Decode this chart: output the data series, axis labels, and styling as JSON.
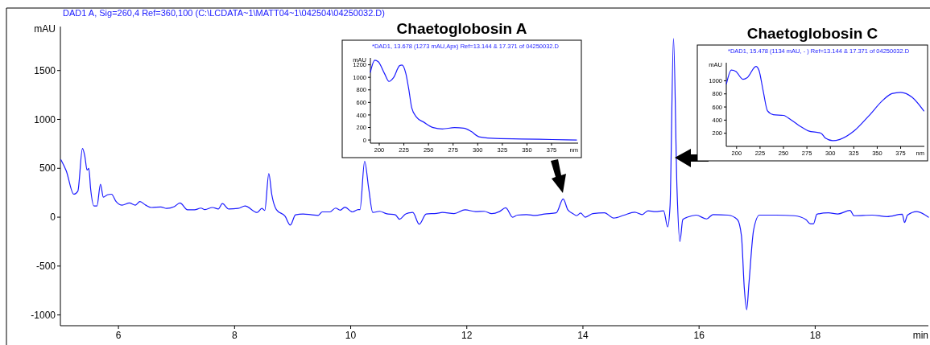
{
  "chart_data": [
    {
      "type": "line",
      "title": "DAD1 A, Sig=260,4 Ref=360,100 (C:\\LCDATA~1\\MATT04~1\\042504\\04250032.D)",
      "xlabel": "min",
      "ylabel": "mAU",
      "xlim": [
        5,
        19.95
      ],
      "ylim": [
        -1110,
        1950
      ],
      "xticks": [
        6,
        8,
        10,
        12,
        14,
        16,
        18
      ],
      "yticks": [
        -1000,
        -500,
        0,
        500,
        1000,
        1500
      ],
      "series": [
        {
          "color": "#1a1aff",
          "x": [
            5.01,
            5.1,
            5.23,
            5.3,
            5.38,
            5.42,
            5.46,
            5.49,
            5.52,
            5.58,
            5.63,
            5.69,
            5.74,
            5.81,
            5.88,
            5.96,
            6.06,
            6.19,
            6.29,
            6.37,
            6.47,
            6.57,
            6.73,
            6.83,
            6.96,
            7.06,
            7.19,
            7.31,
            7.42,
            7.49,
            7.62,
            7.72,
            7.79,
            7.9,
            8.06,
            8.18,
            8.39,
            8.47,
            8.52,
            8.59,
            8.64,
            8.72,
            8.87,
            8.96,
            9.05,
            9.18,
            9.33,
            9.44,
            9.51,
            9.64,
            9.74,
            9.82,
            9.9,
            10.03,
            10.13,
            10.16,
            10.24,
            10.31,
            10.38,
            10.5,
            10.61,
            10.77,
            10.84,
            10.95,
            11.07,
            11.18,
            11.3,
            11.48,
            11.58,
            11.78,
            11.97,
            12.15,
            12.3,
            12.43,
            12.56,
            12.67,
            12.79,
            12.87,
            13.03,
            13.18,
            13.34,
            13.54,
            13.66,
            13.74,
            13.83,
            13.89,
            13.96,
            14.04,
            14.17,
            14.37,
            14.53,
            14.71,
            14.89,
            15.02,
            15.12,
            15.25,
            15.39,
            15.46,
            15.5,
            15.56,
            15.62,
            15.67,
            15.72,
            15.8,
            15.95,
            16.13,
            16.24,
            16.5,
            16.66,
            16.73,
            16.78,
            16.82,
            16.86,
            16.94,
            17.04,
            17.33,
            17.64,
            17.84,
            17.92,
            17.97,
            18.03,
            18.23,
            18.39,
            18.6,
            18.67,
            18.98,
            19.24,
            19.5,
            19.54,
            19.59,
            19.75,
            19.95
          ],
          "values": [
            587,
            476,
            235,
            265,
            702,
            627,
            482,
            500,
            295,
            114,
            114,
            337,
            205,
            229,
            235,
            160,
            123,
            145,
            123,
            160,
            123,
            99,
            105,
            90,
            108,
            145,
            75,
            75,
            93,
            78,
            99,
            84,
            139,
            84,
            90,
            114,
            48,
            90,
            69,
            446,
            235,
            78,
            9,
            -81,
            24,
            33,
            24,
            18,
            54,
            54,
            93,
            72,
            102,
            54,
            78,
            78,
            572,
            295,
            48,
            60,
            36,
            24,
            -21,
            33,
            48,
            -72,
            33,
            39,
            48,
            36,
            75,
            57,
            60,
            36,
            57,
            96,
            0,
            21,
            27,
            18,
            33,
            45,
            187,
            75,
            36,
            15,
            42,
            0,
            36,
            45,
            -9,
            21,
            51,
            27,
            66,
            57,
            66,
            -99,
            111,
            1828,
            292,
            -250,
            -24,
            0,
            21,
            -18,
            27,
            21,
            -24,
            -190,
            -732,
            -946,
            -672,
            -130,
            21,
            21,
            15,
            -24,
            -69,
            -69,
            30,
            45,
            33,
            69,
            15,
            21,
            6,
            30,
            -54,
            21,
            57,
            0
          ]
        }
      ]
    },
    {
      "type": "line",
      "title": "Chaetoglobosin A",
      "subtitle": "*DAD1, 13.678 (1273 mAU,Apx) Ref=13.144 & 17.371 of 04250032.D",
      "xlabel": "nm",
      "ylabel": "mAU",
      "xlim": [
        191,
        402
      ],
      "ylim": [
        -50,
        1310
      ],
      "xticks": [
        200,
        225,
        250,
        275,
        300,
        325,
        350,
        375
      ],
      "yticks": [
        0,
        200,
        400,
        600,
        800,
        1000,
        1200
      ],
      "series": [
        {
          "color": "#1a1aff",
          "x": [
            191,
            195.4,
            199,
            205.3,
            209.9,
            214.6,
            220.7,
            223.2,
            227,
            230,
            233,
            237.8,
            245.5,
            254.8,
            264.1,
            276.5,
            285.8,
            293.5,
            301.3,
            313.7,
            344.6,
            375.6,
            400.4
          ],
          "values": [
            1082,
            1272,
            1250,
            1061,
            935,
            998,
            1187,
            1196,
            1061,
            808,
            514,
            366,
            282,
            198,
            177,
            198,
            189,
            135,
            51,
            29,
            17,
            8,
            0
          ]
        }
      ]
    },
    {
      "type": "line",
      "title": "Chaetoglobosin C",
      "subtitle": "*DAD1, 15.478 (1134 mAU, - ) Ref=13.144 & 17.371 of 04250032.D",
      "xlabel": "nm",
      "ylabel": "mAU",
      "xlim": [
        189,
        400.3
      ],
      "ylim": [
        0,
        1275
      ],
      "xticks": [
        200,
        225,
        250,
        275,
        300,
        325,
        350,
        375
      ],
      "yticks": [
        200,
        400,
        600,
        800,
        1000
      ],
      "series": [
        {
          "color": "#1a1aff",
          "x": [
            189.2,
            194.4,
            199.1,
            206.8,
            211.4,
            220.7,
            223.8,
            228.4,
            233,
            239.2,
            250,
            257.7,
            267,
            276.2,
            290.1,
            294.8,
            302.5,
            310.2,
            325.6,
            341,
            356.5,
            365.7,
            375,
            387.3,
            399.7
          ],
          "values": [
            955,
            1162,
            1143,
            1023,
            1049,
            1219,
            1162,
            842,
            540,
            483,
            472,
            408,
            313,
            238,
            200,
            125,
            87,
            106,
            238,
            464,
            709,
            804,
            823,
            747,
            540
          ]
        }
      ]
    }
  ]
}
